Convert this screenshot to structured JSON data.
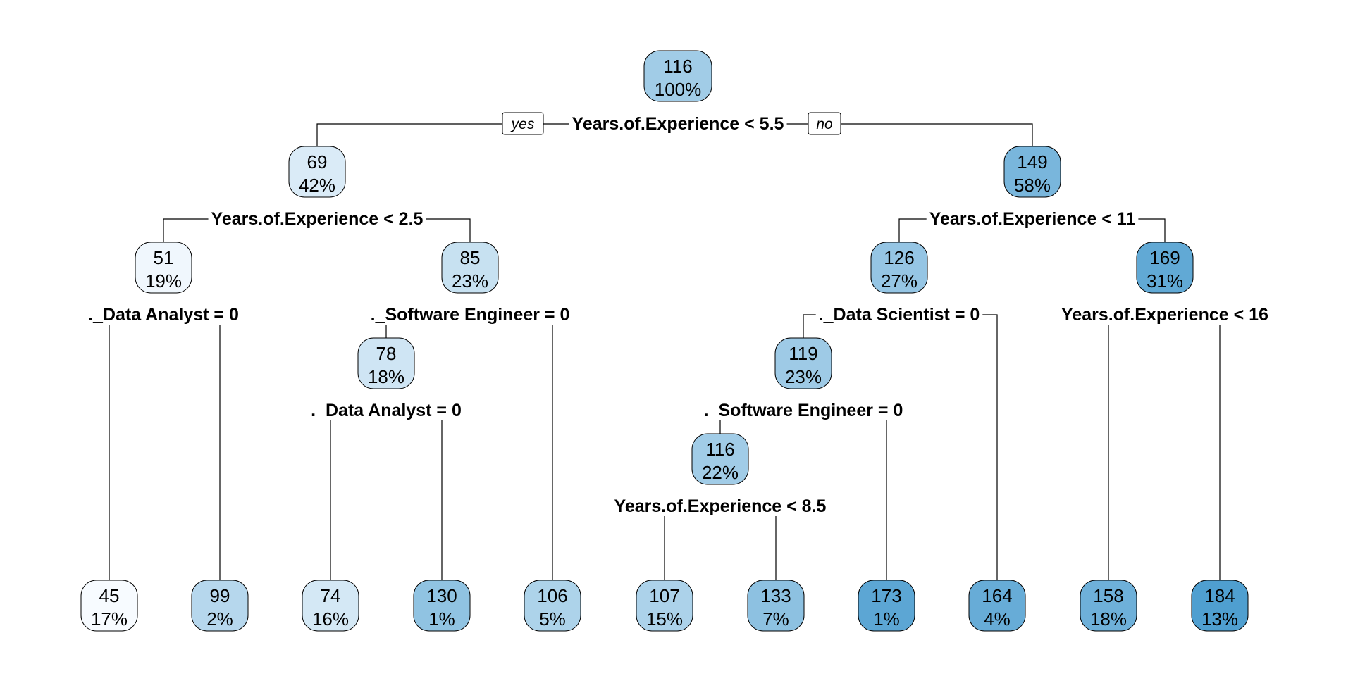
{
  "tree": {
    "branch_labels": {
      "yes": "yes",
      "no": "no"
    },
    "nodes": [
      {
        "id": "root",
        "value": "116",
        "pct": "100%",
        "split": "Years.of.Experience < 5.5"
      },
      {
        "id": "n2",
        "parent": "root",
        "value": "69",
        "pct": "42%",
        "split": "Years.of.Experience < 2.5"
      },
      {
        "id": "n3",
        "parent": "root",
        "value": "149",
        "pct": "58%",
        "split": "Years.of.Experience < 11"
      },
      {
        "id": "n4",
        "parent": "n2",
        "value": "51",
        "pct": "19%",
        "split": "._Data Analyst = 0"
      },
      {
        "id": "n5",
        "parent": "n2",
        "value": "85",
        "pct": "23%",
        "split": "._Software Engineer = 0"
      },
      {
        "id": "n6",
        "parent": "n3",
        "value": "126",
        "pct": "27%",
        "split": "._Data Scientist = 0"
      },
      {
        "id": "n7",
        "parent": "n3",
        "value": "169",
        "pct": "31%",
        "split": "Years.of.Experience < 16"
      },
      {
        "id": "n10",
        "parent": "n5",
        "value": "78",
        "pct": "18%",
        "split": "._Data Analyst = 0"
      },
      {
        "id": "n12",
        "parent": "n6",
        "value": "119",
        "pct": "23%",
        "split": "._Software Engineer = 0"
      },
      {
        "id": "n24",
        "parent": "n12",
        "value": "116",
        "pct": "22%",
        "split": "Years.of.Experience < 8.5"
      },
      {
        "id": "l1",
        "parent": "n4",
        "value": "45",
        "pct": "17%"
      },
      {
        "id": "l2",
        "parent": "n4",
        "value": "99",
        "pct": "2%"
      },
      {
        "id": "l3",
        "parent": "n10",
        "value": "74",
        "pct": "16%"
      },
      {
        "id": "l4",
        "parent": "n10",
        "value": "130",
        "pct": "1%"
      },
      {
        "id": "l5",
        "parent": "n5",
        "value": "106",
        "pct": "5%"
      },
      {
        "id": "l6",
        "parent": "n24",
        "value": "107",
        "pct": "15%"
      },
      {
        "id": "l7",
        "parent": "n24",
        "value": "133",
        "pct": "7%"
      },
      {
        "id": "l8",
        "parent": "n12",
        "value": "173",
        "pct": "1%"
      },
      {
        "id": "l9",
        "parent": "n6",
        "value": "164",
        "pct": "4%"
      },
      {
        "id": "l10",
        "parent": "n7",
        "value": "158",
        "pct": "18%"
      },
      {
        "id": "l11",
        "parent": "n7",
        "value": "184",
        "pct": "13%"
      }
    ],
    "color_scale": {
      "low": "#f7fbff",
      "high": "#4f9fd0",
      "min_value": 45,
      "max_value": 184
    }
  }
}
